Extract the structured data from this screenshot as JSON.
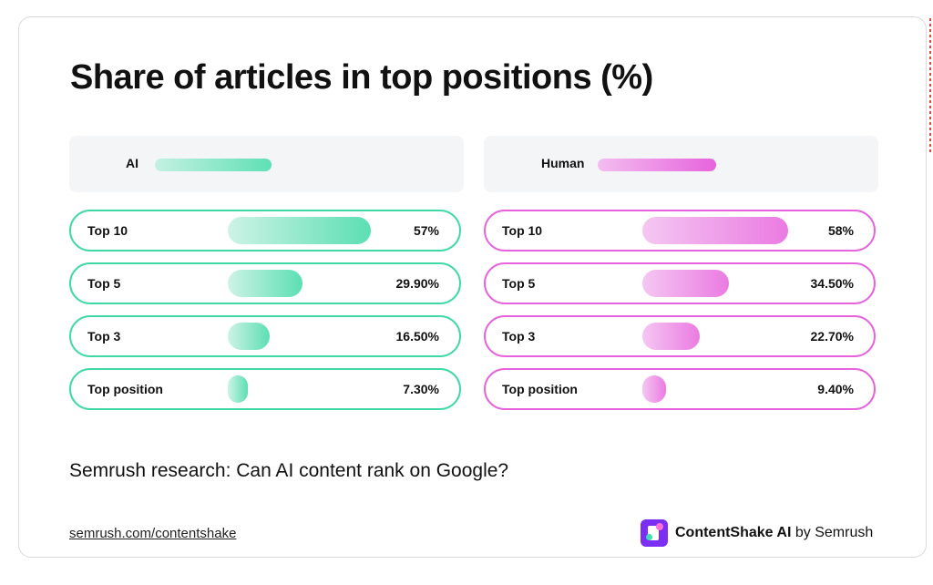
{
  "title": "Share of articles in top positions (%)",
  "subtitle": "Semrush research: Can AI content rank on Google?",
  "footer_link": "semrush.com/contentshake",
  "brand": {
    "name": "ContentShake AI",
    "by": " by Semrush"
  },
  "colors": {
    "ai": "#3fd9a6",
    "ai_light": "#c4f1e2",
    "human": "#e763dd",
    "human_light": "#f3bdef"
  },
  "chart_data": [
    {
      "type": "bar",
      "series_name": "AI",
      "categories": [
        "Top 10",
        "Top 5",
        "Top 3",
        "Top position"
      ],
      "values": [
        57,
        29.9,
        16.5,
        7.3
      ],
      "labels": [
        "57%",
        "29.90%",
        "16.50%",
        "7.30%"
      ]
    },
    {
      "type": "bar",
      "series_name": "Human",
      "categories": [
        "Top 10",
        "Top 5",
        "Top 3",
        "Top position"
      ],
      "values": [
        58,
        34.5,
        22.7,
        9.4
      ],
      "labels": [
        "58%",
        "34.50%",
        "22.70%",
        "9.40%"
      ]
    }
  ]
}
